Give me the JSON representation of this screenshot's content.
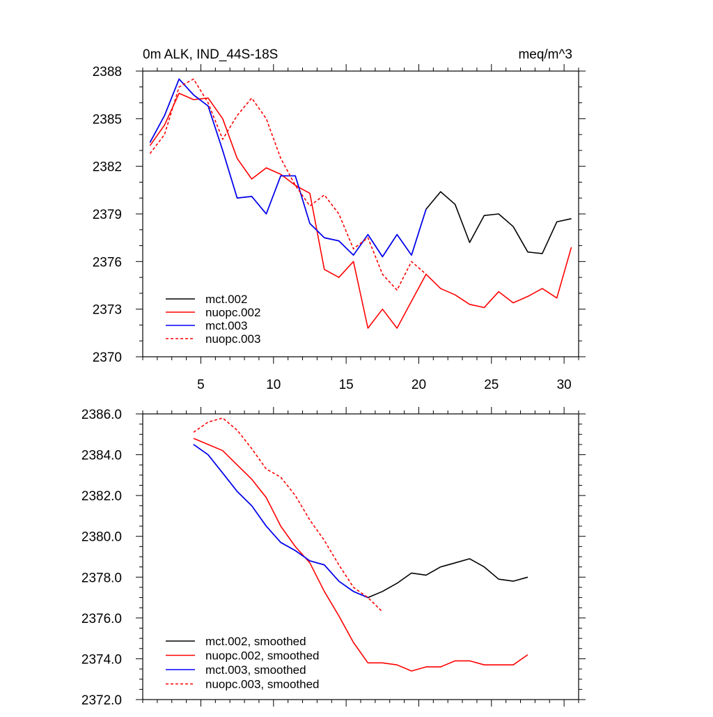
{
  "colors": {
    "black": "#000000",
    "red": "#ff0000",
    "blue": "#0000ff"
  },
  "chart_data": [
    {
      "type": "line",
      "title_left": "0m ALK, IND_44S-18S",
      "title_right": "meq/m^3",
      "xlim": [
        1,
        31
      ],
      "ylim": [
        2370,
        2388
      ],
      "xticks": [
        5,
        10,
        15,
        20,
        25,
        30
      ],
      "xtick_labels": [
        "5",
        "10",
        "15",
        "20",
        "25",
        "30"
      ],
      "yticks": [
        2370,
        2373,
        2376,
        2379,
        2382,
        2385,
        2388
      ],
      "ytick_labels": [
        "2370",
        "2373",
        "2376",
        "2379",
        "2382",
        "2385",
        "2388"
      ],
      "legend_position": "bottom-left",
      "series": [
        {
          "name": "mct.002",
          "color": "#000000",
          "dash": false,
          "x": [
            1.5,
            2.5,
            3.5,
            4.5,
            5.5,
            6.5,
            7.5,
            8.5,
            9.5,
            10.5,
            11.5,
            12.5,
            13.5,
            14.5,
            15.5,
            16.5,
            17.5,
            18.5,
            19.5,
            20.5,
            21.5,
            22.5,
            23.5,
            24.5,
            25.5,
            26.5,
            27.5,
            28.5,
            29.5,
            30.5
          ],
          "values": [
            2383.5,
            2385.2,
            2387.5,
            2386.5,
            2385.8,
            2383.0,
            2380.0,
            2380.1,
            2379.0,
            2381.4,
            2381.4,
            2378.4,
            2377.5,
            2377.3,
            2376.4,
            2377.7,
            2376.3,
            2377.7,
            2376.4,
            2379.3,
            2380.4,
            2379.6,
            2377.2,
            2378.9,
            2379.0,
            2378.2,
            2376.6,
            2376.5,
            2378.5,
            2378.7
          ]
        },
        {
          "name": "nuopc.002",
          "color": "#ff0000",
          "dash": false,
          "x": [
            1.5,
            2.5,
            3.5,
            4.5,
            5.5,
            6.5,
            7.5,
            8.5,
            9.5,
            10.5,
            11.5,
            12.5,
            13.5,
            14.5,
            15.5,
            16.5,
            17.5,
            18.5,
            19.5,
            20.5,
            21.5,
            22.5,
            23.5,
            24.5,
            25.5,
            26.5,
            27.5,
            28.5,
            29.5,
            30.5
          ],
          "values": [
            2383.3,
            2384.6,
            2386.6,
            2386.2,
            2386.3,
            2385.0,
            2382.5,
            2381.2,
            2381.9,
            2381.5,
            2380.8,
            2380.3,
            2375.5,
            2375.0,
            2376.0,
            2371.8,
            2373.0,
            2371.8,
            2373.5,
            2375.2,
            2374.3,
            2373.9,
            2373.3,
            2373.1,
            2374.1,
            2373.4,
            2373.8,
            2374.3,
            2373.7,
            2376.9
          ]
        },
        {
          "name": "mct.003",
          "color": "#0000ff",
          "dash": false,
          "x": [
            1.5,
            2.5,
            3.5,
            4.5,
            5.5,
            6.5,
            7.5,
            8.5,
            9.5,
            10.5,
            11.5,
            12.5,
            13.5,
            14.5,
            15.5,
            16.5,
            17.5,
            18.5,
            19.5,
            20.5
          ],
          "values": [
            2383.5,
            2385.2,
            2387.5,
            2386.5,
            2385.8,
            2383.0,
            2380.0,
            2380.1,
            2379.0,
            2381.4,
            2381.4,
            2378.4,
            2377.5,
            2377.3,
            2376.4,
            2377.7,
            2376.3,
            2377.7,
            2376.4,
            2379.3
          ]
        },
        {
          "name": "nuopc.003",
          "color": "#ff0000",
          "dash": true,
          "x": [
            1.5,
            2.5,
            3.5,
            4.5,
            5.5,
            6.5,
            7.5,
            8.5,
            9.5,
            10.5,
            11.5,
            12.5,
            13.5,
            14.5,
            15.5,
            16.5,
            17.5,
            18.5,
            19.5,
            20.5
          ],
          "values": [
            2382.8,
            2384.0,
            2387.0,
            2387.5,
            2386.0,
            2383.7,
            2385.2,
            2386.3,
            2385.0,
            2382.5,
            2380.8,
            2379.5,
            2380.2,
            2379.0,
            2376.8,
            2377.5,
            2375.2,
            2374.2,
            2376.0,
            2375.2
          ]
        }
      ]
    },
    {
      "type": "line",
      "xlim": [
        1,
        31
      ],
      "ylim": [
        2372,
        2386
      ],
      "xticks": [
        5,
        10,
        15,
        20,
        25,
        30
      ],
      "yticks": [
        2372,
        2374,
        2376,
        2378,
        2380,
        2382,
        2384,
        2386
      ],
      "ytick_labels": [
        "2372.0",
        "2374.0",
        "2376.0",
        "2378.0",
        "2380.0",
        "2382.0",
        "2384.0",
        "2386.0"
      ],
      "legend_position": "bottom-left",
      "series": [
        {
          "name": "mct.002, smoothed",
          "color": "#000000",
          "dash": false,
          "x": [
            4.5,
            5.5,
            6.5,
            7.5,
            8.5,
            9.5,
            10.5,
            11.5,
            12.5,
            13.5,
            14.5,
            15.5,
            16.5,
            17.5,
            18.5,
            19.5,
            20.5,
            21.5,
            22.5,
            23.5,
            24.5,
            25.5,
            26.5,
            27.5
          ],
          "values": [
            2384.5,
            2384.0,
            2383.1,
            2382.2,
            2381.5,
            2380.5,
            2379.7,
            2379.3,
            2378.8,
            2378.6,
            2377.8,
            2377.3,
            2377.0,
            2377.3,
            2377.7,
            2378.2,
            2378.1,
            2378.5,
            2378.7,
            2378.9,
            2378.5,
            2377.9,
            2377.8,
            2378.0
          ]
        },
        {
          "name": "nuopc.002, smoothed",
          "color": "#ff0000",
          "dash": false,
          "x": [
            4.5,
            5.5,
            6.5,
            7.5,
            8.5,
            9.5,
            10.5,
            11.5,
            12.5,
            13.5,
            14.5,
            15.5,
            16.5,
            17.5,
            18.5,
            19.5,
            20.5,
            21.5,
            22.5,
            23.5,
            24.5,
            25.5,
            26.5,
            27.5
          ],
          "values": [
            2384.8,
            2384.5,
            2384.2,
            2383.5,
            2382.8,
            2381.9,
            2380.5,
            2379.5,
            2378.7,
            2377.3,
            2376.1,
            2374.8,
            2373.8,
            2373.8,
            2373.7,
            2373.4,
            2373.6,
            2373.6,
            2373.9,
            2373.9,
            2373.7,
            2373.7,
            2373.7,
            2374.2
          ]
        },
        {
          "name": "mct.003, smoothed",
          "color": "#0000ff",
          "dash": false,
          "x": [
            4.5,
            5.5,
            6.5,
            7.5,
            8.5,
            9.5,
            10.5,
            11.5,
            12.5,
            13.5,
            14.5,
            15.5,
            16.5
          ],
          "values": [
            2384.5,
            2384.0,
            2383.1,
            2382.2,
            2381.5,
            2380.5,
            2379.7,
            2379.3,
            2378.8,
            2378.6,
            2377.8,
            2377.3,
            2377.0
          ]
        },
        {
          "name": "nuopc.003, smoothed",
          "color": "#ff0000",
          "dash": true,
          "x": [
            4.5,
            5.5,
            6.5,
            7.5,
            8.5,
            9.5,
            10.5,
            11.5,
            12.5,
            13.5,
            14.5,
            15.5,
            16.5,
            17.5
          ],
          "values": [
            2385.1,
            2385.6,
            2385.8,
            2385.2,
            2384.3,
            2383.3,
            2382.9,
            2382.0,
            2380.8,
            2379.8,
            2378.6,
            2377.5,
            2377.0,
            2376.3
          ]
        }
      ]
    }
  ]
}
